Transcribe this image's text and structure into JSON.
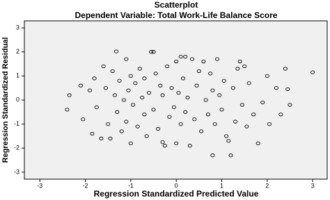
{
  "chart_data": {
    "type": "scatter",
    "title": "Scatterplot",
    "subtitle": "Dependent Variable: Total Work-Life Balance Score",
    "x_label": "Regression Standardized Predicted Value",
    "y_label": "Regression Standardized Residual",
    "xlim": [
      -3.34,
      3.32
    ],
    "ylim": [
      -3.29,
      3.29
    ],
    "xticks": [
      -3,
      -2,
      -1,
      0,
      1,
      2,
      3
    ],
    "yticks": [
      -3,
      -2,
      -1,
      0,
      1,
      2,
      3
    ],
    "color": "#000000",
    "background": "#f0f0f0",
    "x": [
      -2.35,
      -2.4,
      -2.1,
      -2.05,
      -1.9,
      -1.85,
      -1.8,
      -1.75,
      -1.65,
      -1.6,
      -1.55,
      -1.5,
      -1.45,
      -1.4,
      -1.35,
      -1.32,
      -1.3,
      -1.25,
      -1.2,
      -1.15,
      -1.1,
      -1.1,
      -1.05,
      -1.0,
      -1.0,
      -0.95,
      -0.9,
      -0.85,
      -0.8,
      -0.75,
      -0.7,
      -0.7,
      -0.65,
      -0.6,
      -0.55,
      -0.5,
      -0.5,
      -0.45,
      -0.4,
      -0.35,
      -0.3,
      -0.3,
      -0.25,
      -0.2,
      -0.15,
      -0.1,
      -0.05,
      0.0,
      0.0,
      0.05,
      0.1,
      0.1,
      0.15,
      0.2,
      0.2,
      0.25,
      0.3,
      0.35,
      0.4,
      0.45,
      0.5,
      0.55,
      0.6,
      0.65,
      0.7,
      0.75,
      0.8,
      0.8,
      0.85,
      0.9,
      0.95,
      1.0,
      1.05,
      1.1,
      1.15,
      1.2,
      1.25,
      1.3,
      1.35,
      1.4,
      1.45,
      1.5,
      1.55,
      1.6,
      1.7,
      1.8,
      1.9,
      2.0,
      2.05,
      2.2,
      2.3,
      2.4,
      2.45,
      2.5,
      3.0
    ],
    "y": [
      0.2,
      -0.4,
      0.6,
      -0.8,
      0.4,
      -1.4,
      0.9,
      -0.3,
      -1.6,
      1.4,
      0.5,
      -1.0,
      -1.6,
      1.2,
      0.2,
      2.02,
      -0.5,
      0.8,
      -1.3,
      0.0,
      1.7,
      -0.9,
      0.4,
      -1.8,
      1.0,
      -0.2,
      0.7,
      -1.1,
      1.3,
      0.1,
      -0.6,
      0.9,
      -1.5,
      0.3,
      2.0,
      2.0,
      -0.4,
      1.1,
      -1.2,
      0.6,
      -1.75,
      0.2,
      -1.9,
      1.4,
      -0.7,
      0.5,
      -0.3,
      -1.8,
      1.6,
      0.3,
      1.8,
      -1.0,
      0.9,
      1.8,
      -0.5,
      0.1,
      -1.9,
      1.7,
      -0.8,
      0.6,
      1.2,
      -1.3,
      1.6,
      0.0,
      -0.6,
      1.1,
      -2.3,
      0.4,
      -1.0,
      1.7,
      0.2,
      -0.4,
      0.8,
      -1.5,
      -1.7,
      -2.3,
      0.5,
      -0.9,
      1.3,
      1.6,
      -0.2,
      1.4,
      -1.1,
      0.7,
      -0.6,
      -1.8,
      -0.1,
      1.0,
      -1.0,
      0.5,
      -0.6,
      1.3,
      0.45,
      -0.2,
      1.15
    ]
  }
}
